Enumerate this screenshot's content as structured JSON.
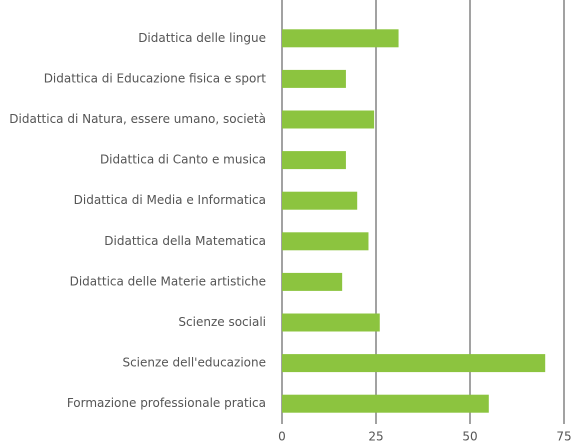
{
  "chart_data": {
    "type": "barh",
    "categories": [
      "Didattica delle lingue",
      "Didattica di Educazione fisica e sport",
      "Didattica di Natura, essere umano, società",
      "Didattica di Canto e musica",
      "Didattica di Media e Informatica",
      "Didattica della Matematica",
      "Didattica delle Materie artistiche",
      "Scienze sociali",
      "Scienze dell'educazione",
      "Formazione professionale pratica"
    ],
    "values": [
      31,
      17,
      24.5,
      17,
      20,
      23,
      16,
      26,
      70,
      55
    ],
    "color": "#8cc43f",
    "xlim": [
      0,
      75
    ],
    "xticks": [
      0,
      25,
      50,
      75
    ],
    "grid": true
  }
}
